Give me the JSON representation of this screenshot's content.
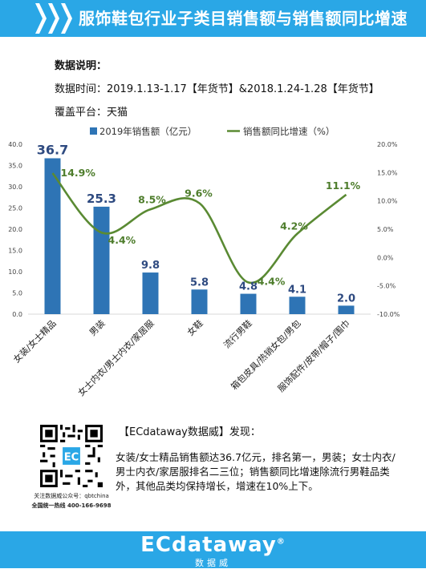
{
  "header": {
    "title": "服饰鞋包行业子类目销售额与销售额同比增速"
  },
  "notes": {
    "label": "数据说明：",
    "time": "数据时间：2019.1.13-1.17【年货节】&2018.1.24-1.28【年货节】",
    "platform": "覆盖平台：天猫"
  },
  "colors": {
    "header_bg": "#2aa7e6",
    "bar": "#2e74b5",
    "line": "#5a8a33",
    "bar_label": "#2e4a80",
    "line_label": "#4e7d2c"
  },
  "chart_data": {
    "type": "bar",
    "categories": [
      "女装/女士精品",
      "男装",
      "女士内衣/男士内衣/家居服",
      "女鞋",
      "流行男鞋",
      "箱包皮具/热销女包/男包",
      "服饰配件/皮带/帽子/围巾"
    ],
    "series": [
      {
        "name": "2019年销售额（亿元）",
        "type": "bar",
        "axis": "left",
        "values": [
          36.7,
          25.3,
          9.8,
          5.8,
          4.8,
          4.1,
          2.0
        ],
        "labels": [
          "36.7",
          "25.3",
          "9.8",
          "5.8",
          "4.8",
          "4.1",
          "2.0"
        ]
      },
      {
        "name": "销售额同比增速（%）",
        "type": "line",
        "axis": "right",
        "values": [
          14.9,
          4.4,
          8.5,
          9.6,
          -4.4,
          4.2,
          11.1
        ],
        "labels": [
          "14.9%",
          "4.4%",
          "8.5%",
          "9.6%",
          "-4.4%",
          "4.2%",
          "11.1%"
        ]
      }
    ],
    "ylim_left": [
      0,
      40
    ],
    "yticks_left": [
      "0.0",
      "5.0",
      "10.0",
      "15.0",
      "20.0",
      "25.0",
      "30.0",
      "35.0",
      "40.0"
    ],
    "ylim_right": [
      -10,
      20
    ],
    "yticks_right": [
      "-10.0%",
      "-5.0%",
      "0.0%",
      "5.0%",
      "10.0%",
      "15.0%",
      "20.0%"
    ],
    "grid": false,
    "legend": "top"
  },
  "qr": {
    "brand": "EC",
    "caption1": "关注数据威公众号：qbtchina",
    "caption2": "全国统一热线 400-166-9698"
  },
  "finding": {
    "title": "【ECdataway数据威】发现：",
    "body": "女装/女士精品销售额达36.7亿元，排名第一，男装；女士内衣/男士内衣/家居服排名二三位；销售额同比增速除流行男鞋品类外，其他品类均保持增长，增速在10%上下。"
  },
  "footer": {
    "logo": "ECdataway",
    "reg": "®",
    "sub": "数据威"
  }
}
